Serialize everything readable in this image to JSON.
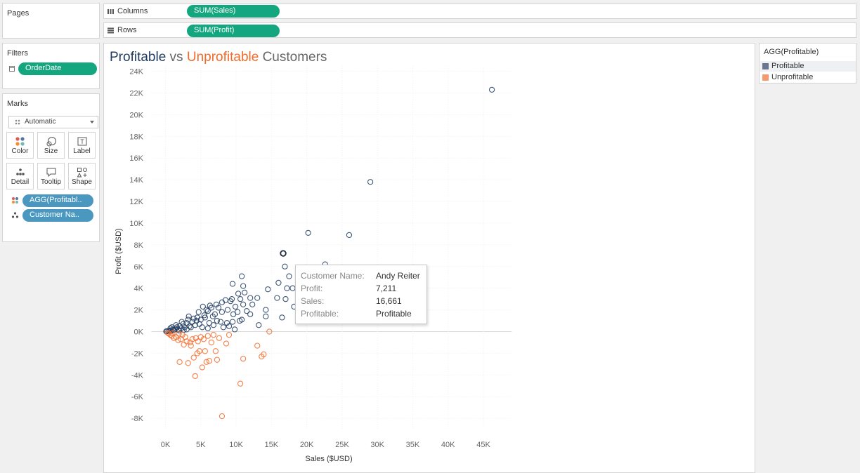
{
  "pages_panel": {
    "title": "Pages"
  },
  "shelves": {
    "columns": {
      "label": "Columns",
      "pill": "SUM(Sales)"
    },
    "rows": {
      "label": "Rows",
      "pill": "SUM(Profit)"
    }
  },
  "filters_panel": {
    "title": "Filters",
    "pill": "OrderDate"
  },
  "marks_panel": {
    "title": "Marks",
    "mark_type": "Automatic",
    "buttons": [
      "Color",
      "Size",
      "Label",
      "Detail",
      "Tooltip",
      "Shape"
    ],
    "fields": [
      "AGG(Profitabl..",
      "Customer Na.."
    ]
  },
  "legend": {
    "title": "AGG(Profitable)",
    "items": [
      {
        "label": "Profitable",
        "color": "#6a7690"
      },
      {
        "label": "Unprofitable",
        "color": "#f59a6e"
      }
    ]
  },
  "title_parts": {
    "part1": "Profitable",
    "part2": " vs ",
    "part3": "Unprofitable",
    "part4": " Customers"
  },
  "colors": {
    "profitable": "#1f3a5f",
    "unprofitable": "#f26b2b",
    "accent_green": "#14a77f",
    "accent_blue": "#4a97c0"
  },
  "tooltip": {
    "rows": [
      {
        "key": "Customer Name:",
        "value": "Andy Reiter"
      },
      {
        "key": "Profit:",
        "value": "7,211"
      },
      {
        "key": "Sales:",
        "value": "16,661"
      },
      {
        "key": "Profitable:",
        "value": "Profitable"
      }
    ]
  },
  "chart_data": {
    "type": "scatter",
    "title": "Profitable vs Unprofitable Customers",
    "xlabel": "Sales ($USD)",
    "ylabel": "Profit ($USD)",
    "xlim": [
      -2000,
      49000
    ],
    "ylim": [
      -9000,
      24500
    ],
    "x_ticks": [
      "0K",
      "5K",
      "10K",
      "15K",
      "20K",
      "25K",
      "30K",
      "35K",
      "40K",
      "45K"
    ],
    "x_tick_values": [
      0,
      5000,
      10000,
      15000,
      20000,
      25000,
      30000,
      35000,
      40000,
      45000
    ],
    "y_ticks": [
      "-8K",
      "-6K",
      "-4K",
      "-2K",
      "0K",
      "2K",
      "4K",
      "6K",
      "8K",
      "10K",
      "12K",
      "14K",
      "16K",
      "18K",
      "20K",
      "22K",
      "24K"
    ],
    "y_tick_values": [
      -8000,
      -6000,
      -4000,
      -2000,
      0,
      2000,
      4000,
      6000,
      8000,
      10000,
      12000,
      14000,
      16000,
      18000,
      20000,
      22000,
      24000
    ],
    "grid": true,
    "highlighted_point": {
      "x": 16661,
      "y": 7211
    },
    "series": [
      {
        "name": "Profitable",
        "points": [
          [
            46200,
            22300
          ],
          [
            29000,
            13800
          ],
          [
            20200,
            9100
          ],
          [
            26000,
            8900
          ],
          [
            16661,
            7211
          ],
          [
            22600,
            6200
          ],
          [
            16900,
            6000
          ],
          [
            17500,
            5100
          ],
          [
            10800,
            5100
          ],
          [
            9500,
            4400
          ],
          [
            11000,
            4200
          ],
          [
            14500,
            3900
          ],
          [
            16000,
            4500
          ],
          [
            17200,
            4000
          ],
          [
            15800,
            3100
          ],
          [
            18000,
            4000
          ],
          [
            18200,
            2300
          ],
          [
            14200,
            2000
          ],
          [
            13000,
            3100
          ],
          [
            12000,
            3100
          ],
          [
            10300,
            3500
          ],
          [
            11200,
            3600
          ],
          [
            9400,
            3000
          ],
          [
            10600,
            3000
          ],
          [
            11000,
            2500
          ],
          [
            9200,
            2800
          ],
          [
            12300,
            2500
          ],
          [
            8500,
            2900
          ],
          [
            8000,
            2700
          ],
          [
            7500,
            2200
          ],
          [
            9900,
            2300
          ],
          [
            11500,
            1900
          ],
          [
            12000,
            1600
          ],
          [
            10500,
            1000
          ],
          [
            10800,
            1100
          ],
          [
            9500,
            900
          ],
          [
            8700,
            800
          ],
          [
            13200,
            600
          ],
          [
            14200,
            1400
          ],
          [
            16500,
            1300
          ],
          [
            17000,
            3000
          ],
          [
            8000,
            1800
          ],
          [
            7000,
            1600
          ],
          [
            6500,
            2200
          ],
          [
            6000,
            1900
          ],
          [
            5800,
            2000
          ],
          [
            6700,
            1400
          ],
          [
            5500,
            1500
          ],
          [
            7800,
            900
          ],
          [
            5000,
            1100
          ],
          [
            4500,
            1300
          ],
          [
            4000,
            1200
          ],
          [
            4800,
            700
          ],
          [
            4200,
            600
          ],
          [
            3800,
            900
          ],
          [
            3400,
            500
          ],
          [
            3000,
            800
          ],
          [
            2700,
            400
          ],
          [
            2500,
            700
          ],
          [
            2200,
            300
          ],
          [
            2000,
            500
          ],
          [
            1800,
            200
          ],
          [
            1600,
            400
          ],
          [
            1400,
            250
          ],
          [
            1200,
            150
          ],
          [
            1000,
            200
          ],
          [
            800,
            100
          ],
          [
            600,
            80
          ],
          [
            400,
            50
          ],
          [
            200,
            30
          ],
          [
            100,
            20
          ],
          [
            2300,
            900
          ],
          [
            3200,
            1100
          ],
          [
            3600,
            400
          ],
          [
            4400,
            1000
          ],
          [
            5200,
            400
          ],
          [
            5600,
            1300
          ],
          [
            6200,
            800
          ],
          [
            6800,
            600
          ],
          [
            7300,
            1000
          ],
          [
            8200,
            400
          ],
          [
            9000,
            500
          ],
          [
            9800,
            200
          ],
          [
            6000,
            300
          ],
          [
            3000,
            200
          ],
          [
            1500,
            600
          ],
          [
            900,
            400
          ],
          [
            700,
            300
          ],
          [
            1900,
            100
          ],
          [
            2600,
            150
          ],
          [
            3300,
            1400
          ],
          [
            4700,
            1800
          ],
          [
            5300,
            2300
          ],
          [
            6300,
            2400
          ],
          [
            7200,
            2500
          ],
          [
            8800,
            2000
          ],
          [
            9600,
            1600
          ],
          [
            10200,
            1800
          ]
        ]
      },
      {
        "name": "Unprofitable",
        "points": [
          [
            8000,
            -7800
          ],
          [
            10600,
            -4800
          ],
          [
            4200,
            -4100
          ],
          [
            5200,
            -3300
          ],
          [
            2000,
            -2800
          ],
          [
            3200,
            -2900
          ],
          [
            5800,
            -2800
          ],
          [
            6200,
            -2700
          ],
          [
            7300,
            -2600
          ],
          [
            11000,
            -2500
          ],
          [
            13600,
            -2300
          ],
          [
            13900,
            -2100
          ],
          [
            13000,
            -1300
          ],
          [
            4000,
            -2400
          ],
          [
            4500,
            -2000
          ],
          [
            5600,
            -1800
          ],
          [
            4800,
            -1800
          ],
          [
            7100,
            -1800
          ],
          [
            8600,
            -1100
          ],
          [
            2600,
            -1200
          ],
          [
            3000,
            -900
          ],
          [
            3500,
            -1000
          ],
          [
            1800,
            -800
          ],
          [
            1200,
            -600
          ],
          [
            900,
            -400
          ],
          [
            700,
            -300
          ],
          [
            500,
            -200
          ],
          [
            300,
            -100
          ],
          [
            1500,
            -500
          ],
          [
            2200,
            -700
          ],
          [
            2800,
            -500
          ],
          [
            3800,
            -700
          ],
          [
            4300,
            -600
          ],
          [
            5000,
            -500
          ],
          [
            6000,
            -400
          ],
          [
            6800,
            -300
          ],
          [
            7600,
            -600
          ],
          [
            9000,
            -300
          ],
          [
            14700,
            0
          ],
          [
            2400,
            -300
          ],
          [
            1900,
            -200
          ],
          [
            1000,
            -150
          ],
          [
            3600,
            -1300
          ],
          [
            4600,
            -900
          ],
          [
            6500,
            -1000
          ],
          [
            5400,
            -700
          ]
        ]
      }
    ]
  }
}
